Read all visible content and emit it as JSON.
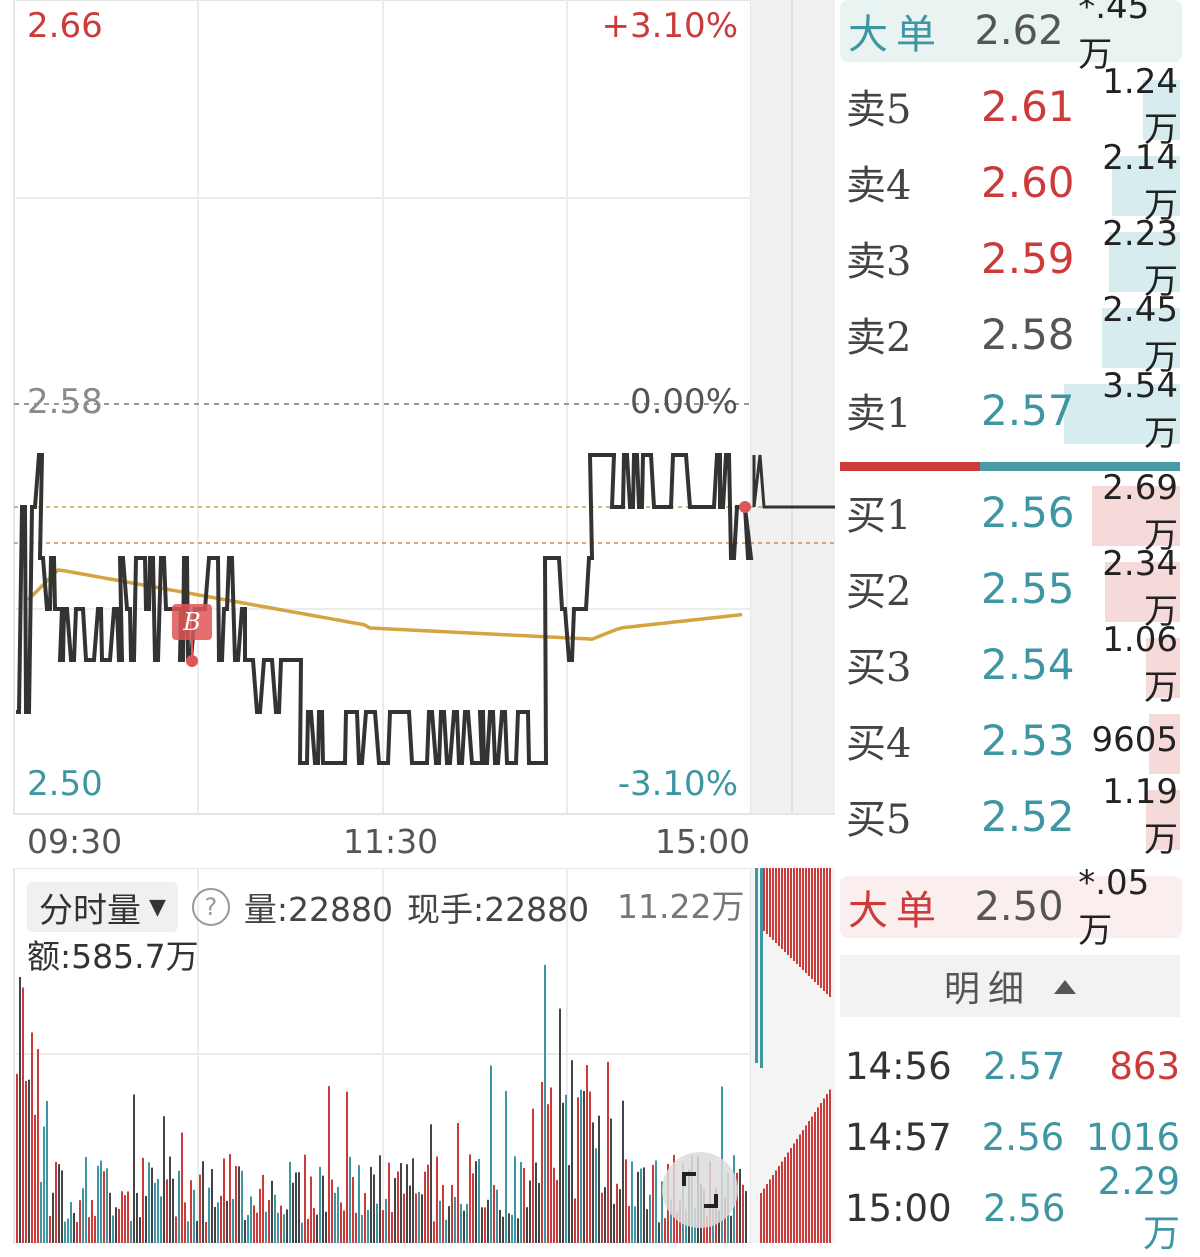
{
  "price_chart": {
    "price_high": "2.66",
    "pct_high": "+3.10%",
    "ref_price": "2.58",
    "ref_pct": "0.00%",
    "price_low": "2.50",
    "pct_low": "-3.10%",
    "times": [
      "09:30",
      "11:30",
      "15:00"
    ],
    "trade_marker": "B",
    "colors": {
      "price_line": "#333333",
      "avg_line": "#d4a441",
      "up": "#cc3a3a",
      "down": "#3e96a3"
    }
  },
  "volume_panel": {
    "selector_label": "分时量",
    "volume_text": "量:22880",
    "current_hand_text": "现手:22880",
    "max_volume": "11.22万",
    "amount_text": "额:585.7万"
  },
  "order_book": {
    "big_sell": {
      "label": "大单",
      "price": "2.62",
      "volume": "*.45万"
    },
    "asks": [
      {
        "label": "卖5",
        "price": "2.61",
        "volume": "1.24万",
        "color": "red",
        "ratio": 0.11
      },
      {
        "label": "卖4",
        "price": "2.60",
        "volume": "2.14万",
        "color": "red",
        "ratio": 0.2
      },
      {
        "label": "卖3",
        "price": "2.59",
        "volume": "2.23万",
        "color": "red",
        "ratio": 0.21
      },
      {
        "label": "卖2",
        "price": "2.58",
        "volume": "2.45万",
        "color": "gray",
        "ratio": 0.23
      },
      {
        "label": "卖1",
        "price": "2.57",
        "volume": "3.54万",
        "color": "teal",
        "ratio": 0.34
      }
    ],
    "bids": [
      {
        "label": "买1",
        "price": "2.56",
        "volume": "2.69万",
        "color": "teal",
        "ratio": 0.26
      },
      {
        "label": "买2",
        "price": "2.55",
        "volume": "2.34万",
        "color": "teal",
        "ratio": 0.22
      },
      {
        "label": "买3",
        "price": "2.54",
        "volume": "1.06万",
        "color": "teal",
        "ratio": 0.1
      },
      {
        "label": "买4",
        "price": "2.53",
        "volume": "9605",
        "color": "teal",
        "ratio": 0.09
      },
      {
        "label": "买5",
        "price": "2.52",
        "volume": "1.19万",
        "color": "teal",
        "ratio": 0.1
      }
    ],
    "big_buy": {
      "label": "大单",
      "price": "2.50",
      "volume": "*.05万"
    }
  },
  "details": {
    "header": "明细",
    "rows": [
      {
        "time": "14:56",
        "price": "2.57",
        "volume": "863",
        "price_color": "teal",
        "volume_color": "red"
      },
      {
        "time": "14:57",
        "price": "2.56",
        "volume": "1016",
        "price_color": "teal",
        "volume_color": "teal"
      },
      {
        "time": "15:00",
        "price": "2.56",
        "volume": "2.29万",
        "price_color": "teal",
        "volume_color": "teal"
      }
    ]
  },
  "icons": {
    "dropdown": "caret-down-icon",
    "help": "help-icon",
    "fullscreen": "fullscreen-icon",
    "expand": "caret-up-icon"
  }
}
